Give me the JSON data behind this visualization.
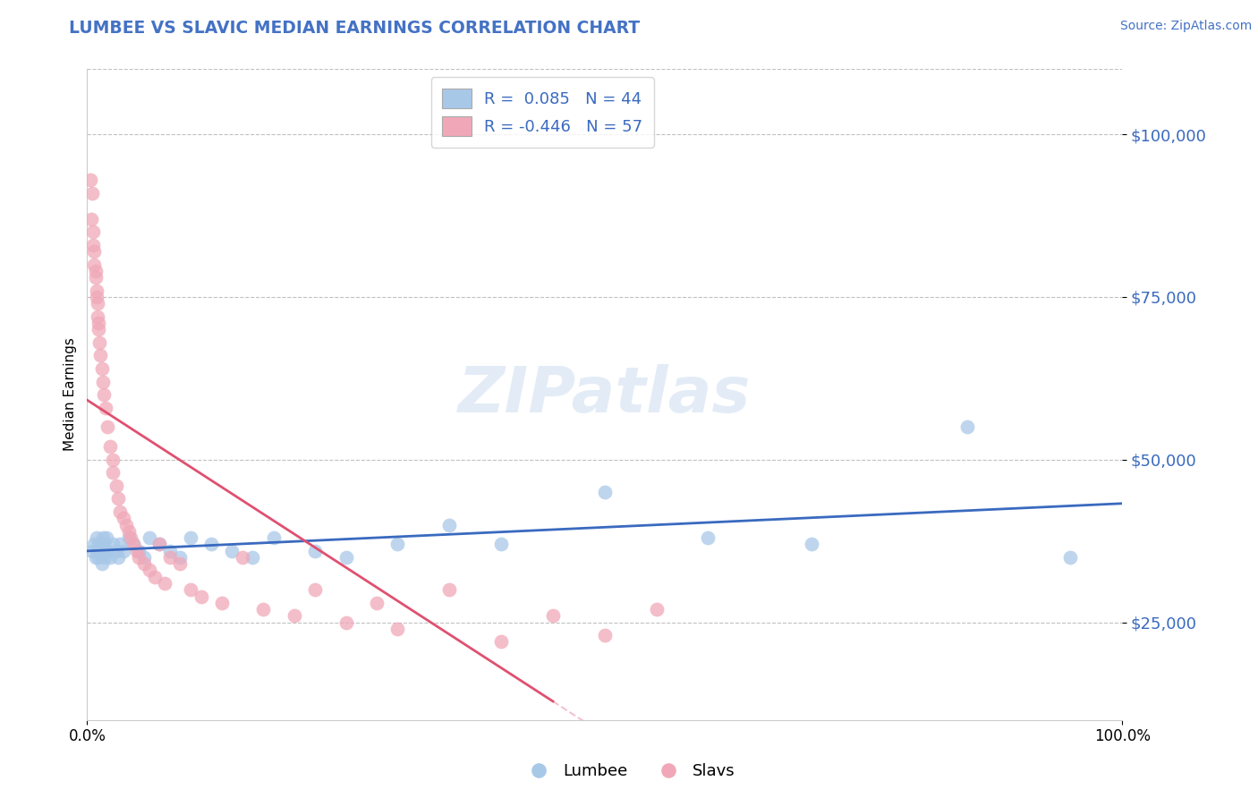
{
  "title": "LUMBEE VS SLAVIC MEDIAN EARNINGS CORRELATION CHART",
  "source": "Source: ZipAtlas.com",
  "xlabel": "",
  "ylabel": "Median Earnings",
  "xlim": [
    0,
    1.0
  ],
  "ylim": [
    10000,
    110000
  ],
  "yticks": [
    25000,
    50000,
    75000,
    100000
  ],
  "ytick_labels": [
    "$25,000",
    "$50,000",
    "$75,000",
    "$100,000"
  ],
  "xtick_labels": [
    "0.0%",
    "100.0%"
  ],
  "lumbee_R": 0.085,
  "lumbee_N": 44,
  "slavic_R": -0.446,
  "slavic_N": 57,
  "lumbee_color": "#a8c8e8",
  "slavic_color": "#f0a8b8",
  "lumbee_line_color": "#3a6abf",
  "slavic_line_color": "#e05070",
  "background_color": "#ffffff",
  "title_color": "#4472c4",
  "source_color": "#4472c4",
  "lumbee_x": [
    0.005,
    0.007,
    0.008,
    0.009,
    0.01,
    0.011,
    0.012,
    0.013,
    0.014,
    0.015,
    0.016,
    0.017,
    0.018,
    0.019,
    0.02,
    0.022,
    0.025,
    0.028,
    0.03,
    0.032,
    0.035,
    0.04,
    0.045,
    0.05,
    0.055,
    0.06,
    0.07,
    0.08,
    0.09,
    0.1,
    0.12,
    0.14,
    0.16,
    0.18,
    0.22,
    0.25,
    0.3,
    0.35,
    0.4,
    0.5,
    0.6,
    0.7,
    0.85,
    0.95
  ],
  "lumbee_y": [
    36000,
    37000,
    35000,
    38000,
    36000,
    35000,
    37000,
    36000,
    34000,
    38000,
    37000,
    35000,
    36000,
    38000,
    36000,
    35000,
    37000,
    36000,
    35000,
    37000,
    36000,
    38000,
    37000,
    36000,
    35000,
    38000,
    37000,
    36000,
    35000,
    38000,
    37000,
    36000,
    35000,
    38000,
    36000,
    35000,
    37000,
    40000,
    37000,
    45000,
    38000,
    37000,
    55000,
    35000
  ],
  "slavic_x": [
    0.003,
    0.004,
    0.005,
    0.006,
    0.006,
    0.007,
    0.007,
    0.008,
    0.008,
    0.009,
    0.009,
    0.01,
    0.01,
    0.011,
    0.011,
    0.012,
    0.013,
    0.014,
    0.015,
    0.016,
    0.018,
    0.02,
    0.022,
    0.025,
    0.025,
    0.028,
    0.03,
    0.032,
    0.035,
    0.038,
    0.04,
    0.042,
    0.045,
    0.048,
    0.05,
    0.055,
    0.06,
    0.065,
    0.07,
    0.075,
    0.08,
    0.09,
    0.1,
    0.11,
    0.13,
    0.15,
    0.17,
    0.2,
    0.22,
    0.25,
    0.28,
    0.3,
    0.35,
    0.4,
    0.45,
    0.5,
    0.55
  ],
  "slavic_y": [
    93000,
    87000,
    91000,
    85000,
    83000,
    82000,
    80000,
    79000,
    78000,
    76000,
    75000,
    74000,
    72000,
    71000,
    70000,
    68000,
    66000,
    64000,
    62000,
    60000,
    58000,
    55000,
    52000,
    50000,
    48000,
    46000,
    44000,
    42000,
    41000,
    40000,
    39000,
    38000,
    37000,
    36000,
    35000,
    34000,
    33000,
    32000,
    37000,
    31000,
    35000,
    34000,
    30000,
    29000,
    28000,
    35000,
    27000,
    26000,
    30000,
    25000,
    28000,
    24000,
    30000,
    22000,
    26000,
    23000,
    27000
  ]
}
